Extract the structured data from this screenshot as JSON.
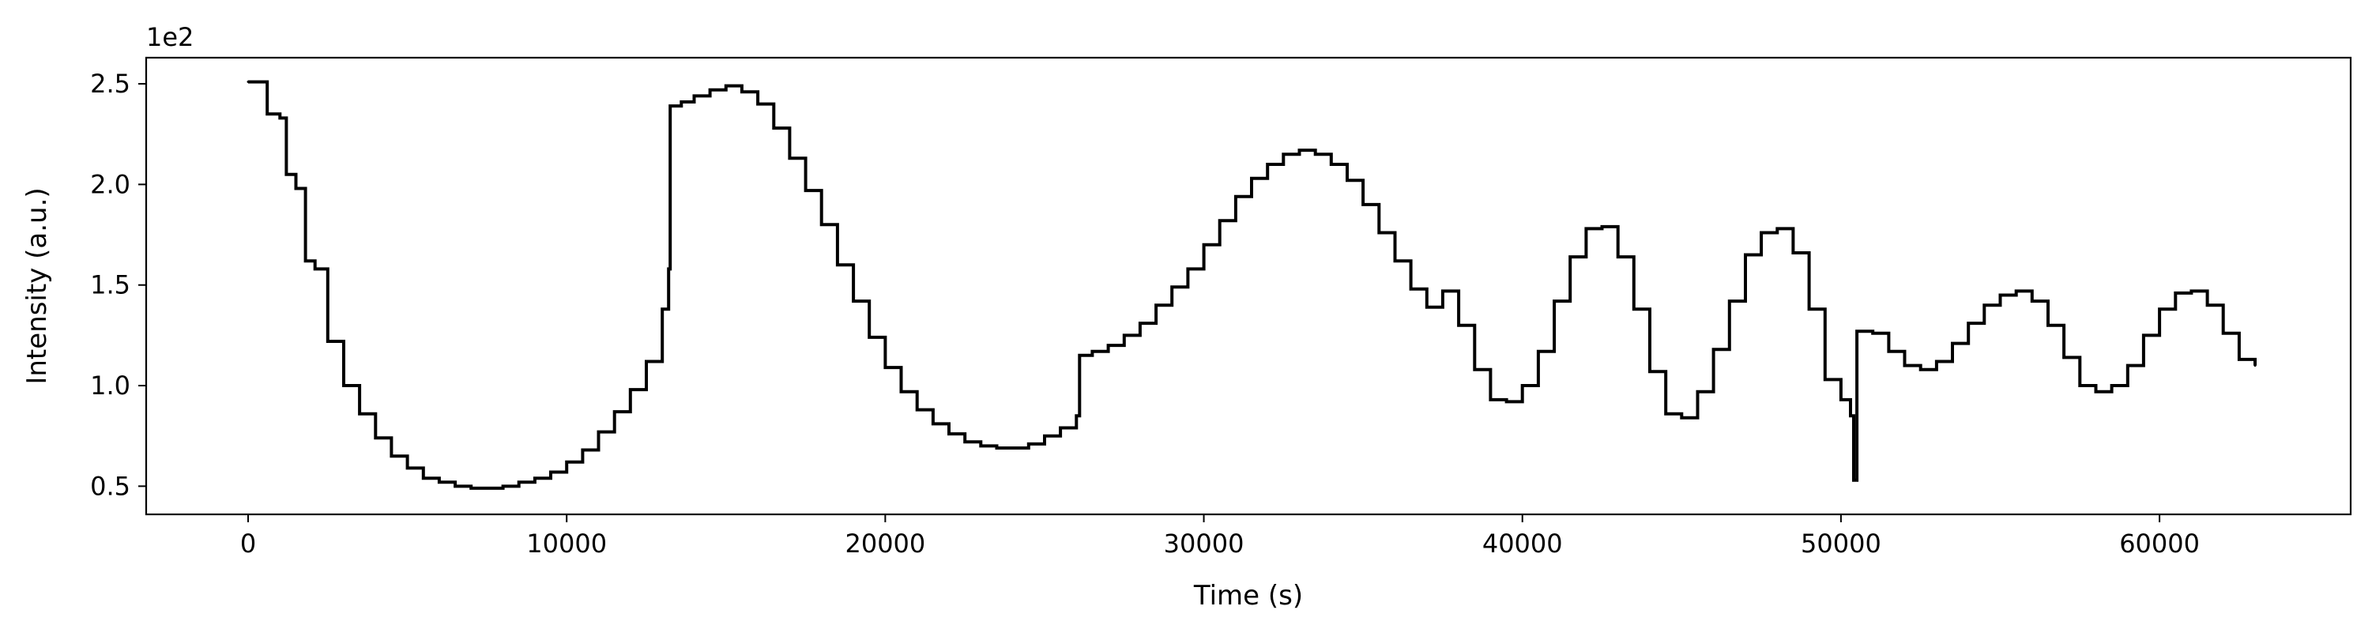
{
  "chart_data": {
    "type": "line",
    "title": "",
    "xlabel": "Time (s)",
    "ylabel": "Intensity (a.u.)",
    "y_offset_label": "1e2",
    "xlim": [
      -3200,
      66000
    ],
    "ylim": [
      0.36,
      2.63
    ],
    "xticks": [
      0,
      10000,
      20000,
      30000,
      40000,
      50000,
      60000
    ],
    "xtick_labels": [
      "0",
      "10000",
      "20000",
      "30000",
      "40000",
      "50000",
      "60000"
    ],
    "yticks": [
      0.5,
      1.0,
      1.5,
      2.0,
      2.5
    ],
    "ytick_labels": [
      "0.5",
      "1.0",
      "1.5",
      "2.0",
      "2.5"
    ],
    "grid": false,
    "line_color": "#000000",
    "series": [
      {
        "x": [
          0,
          500,
          600,
          1000,
          1200,
          1500,
          1800,
          2100,
          2500,
          3000,
          3500,
          4000,
          4500,
          5000,
          5500,
          6000,
          6500,
          7000,
          7500,
          8000,
          8500,
          9000,
          9500,
          10000,
          10500,
          11000,
          11500,
          12000,
          12500,
          13000,
          13200,
          13250,
          13600,
          14000,
          14500,
          15000,
          15500,
          16000,
          16500,
          17000,
          17500,
          18000,
          18500,
          19000,
          19500,
          20000,
          20500,
          21000,
          21500,
          22000,
          22500,
          23000,
          23500,
          24000,
          24500,
          25000,
          25500,
          26000,
          26100,
          26500,
          27000,
          27500,
          28000,
          28500,
          29000,
          29500,
          30000,
          30500,
          31000,
          31500,
          32000,
          32500,
          33000,
          33500,
          34000,
          34500,
          35000,
          35500,
          36000,
          36500,
          37000,
          37500,
          38000,
          38500,
          39000,
          39500,
          40000,
          40500,
          41000,
          41500,
          42000,
          42500,
          43000,
          43500,
          44000,
          44500,
          45000,
          45500,
          46000,
          46500,
          47000,
          47500,
          48000,
          48500,
          49000,
          49500,
          50000,
          50300,
          50400,
          50500,
          51000,
          51500,
          52000,
          52500,
          53000,
          53500,
          54000,
          54500,
          55000,
          55500,
          56000,
          56500,
          57000,
          57500,
          58000,
          58500,
          59000,
          59500,
          60000,
          60500,
          61000,
          61500,
          62000,
          62500,
          63000
        ],
        "y": [
          2.51,
          2.51,
          2.35,
          2.33,
          2.05,
          1.98,
          1.62,
          1.58,
          1.22,
          1.0,
          0.86,
          0.74,
          0.65,
          0.59,
          0.54,
          0.52,
          0.5,
          0.49,
          0.49,
          0.5,
          0.52,
          0.54,
          0.57,
          0.62,
          0.68,
          0.77,
          0.87,
          0.98,
          1.12,
          1.38,
          1.58,
          2.39,
          2.41,
          2.44,
          2.47,
          2.49,
          2.46,
          2.4,
          2.28,
          2.13,
          1.97,
          1.8,
          1.6,
          1.42,
          1.24,
          1.09,
          0.97,
          0.88,
          0.81,
          0.76,
          0.72,
          0.7,
          0.69,
          0.69,
          0.71,
          0.75,
          0.79,
          0.85,
          1.15,
          1.17,
          1.2,
          1.25,
          1.31,
          1.4,
          1.49,
          1.58,
          1.7,
          1.82,
          1.94,
          2.03,
          2.1,
          2.15,
          2.17,
          2.15,
          2.1,
          2.02,
          1.9,
          1.76,
          1.62,
          1.48,
          1.39,
          1.47,
          1.3,
          1.08,
          0.93,
          0.92,
          1.0,
          1.17,
          1.42,
          1.64,
          1.78,
          1.79,
          1.64,
          1.38,
          1.07,
          0.86,
          0.84,
          0.97,
          1.18,
          1.42,
          1.65,
          1.76,
          1.78,
          1.66,
          1.38,
          1.03,
          0.93,
          0.85,
          0.53,
          1.27,
          1.26,
          1.17,
          1.1,
          1.08,
          1.12,
          1.21,
          1.31,
          1.4,
          1.45,
          1.47,
          1.42,
          1.3,
          1.14,
          1.0,
          0.97,
          1.0,
          1.1,
          1.25,
          1.38,
          1.46,
          1.47,
          1.4,
          1.26,
          1.13,
          1.1
        ]
      }
    ]
  }
}
